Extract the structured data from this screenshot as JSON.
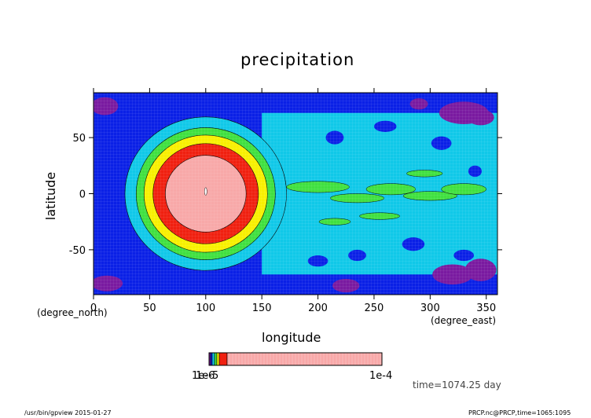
{
  "chart_data": {
    "type": "heatmap",
    "title": "precipitation",
    "xlabel": "longitude",
    "ylabel": "latitude",
    "x_unit": "(degree_east)",
    "y_unit": "(degree_north)",
    "xlim": [
      0,
      360
    ],
    "ylim": [
      -90,
      90
    ],
    "x_ticks": [
      0,
      50,
      100,
      150,
      200,
      250,
      300,
      350
    ],
    "y_ticks": [
      -50,
      0,
      50
    ],
    "colorbar": {
      "labels": [
        "1e-6",
        "1e-5",
        "1e-4"
      ],
      "levels": [
        1e-10,
        1e-09,
        1e-08,
        1e-07,
        1e-06,
        1e-05,
        0.0001
      ],
      "colors": [
        "#7a1aa0",
        "#0a20e6",
        "#10c8e8",
        "#40e040",
        "#f8f000",
        "#f02010",
        "#f8a8a8"
      ]
    },
    "features": {
      "rain_center": {
        "lon": 100,
        "lat": 0
      },
      "rain_radii_deg": [
        36,
        47,
        55,
        62,
        72
      ]
    },
    "time_label": "time=1074.25 day"
  },
  "footer": {
    "left": "/usr/bin/gpview  2015-01-27",
    "right": "PRCP.nc@PRCP,time=1065:1095"
  }
}
